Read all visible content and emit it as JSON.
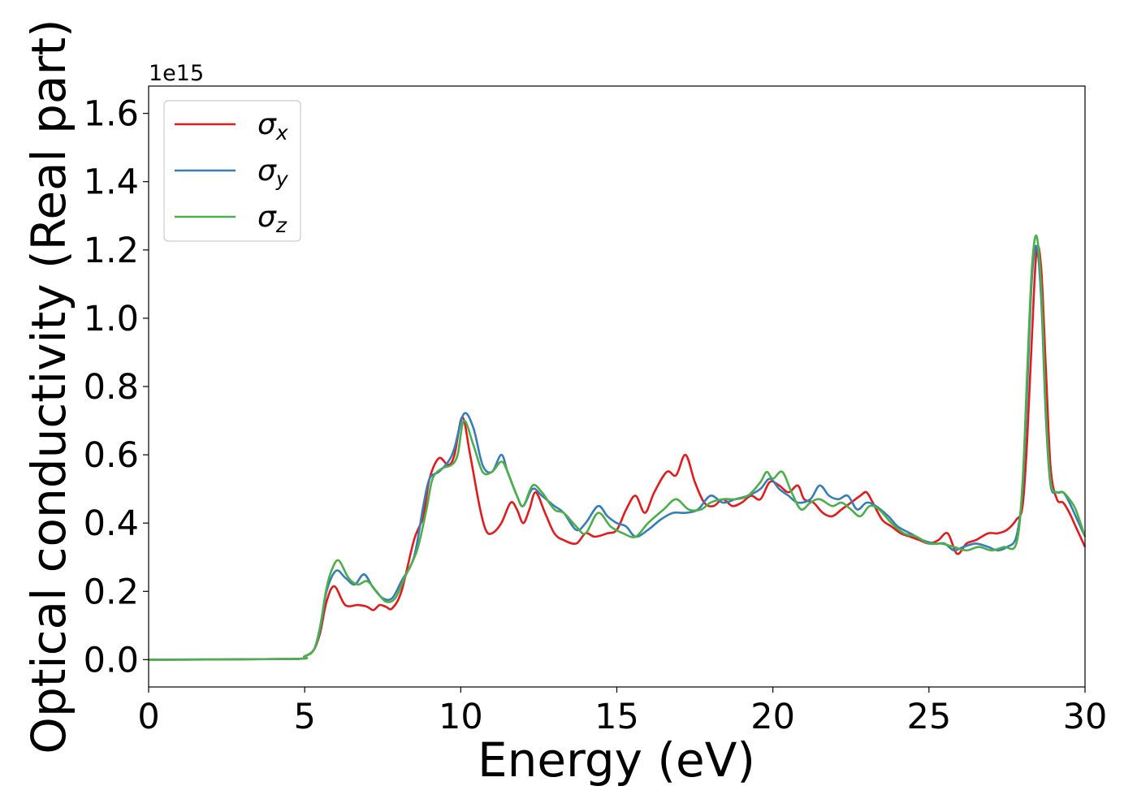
{
  "chart_data": {
    "type": "line",
    "xlabel": "Energy (eV)",
    "ylabel": "Optical conductivity (Real part)",
    "y_offset_label": "1e15",
    "xlim": [
      0,
      30
    ],
    "ylim": [
      -0.08,
      1.68
    ],
    "x_ticks": [
      0,
      5,
      10,
      15,
      20,
      25,
      30
    ],
    "x_tick_labels": [
      "0",
      "5",
      "10",
      "15",
      "20",
      "25",
      "30"
    ],
    "y_ticks": [
      0.0,
      0.2,
      0.4,
      0.6,
      0.8,
      1.0,
      1.2,
      1.4,
      1.6
    ],
    "y_tick_labels": [
      "0.0",
      "0.2",
      "0.4",
      "0.6",
      "0.8",
      "1.0",
      "1.2",
      "1.4",
      "1.6"
    ],
    "grid": false,
    "legend_position": "top-left",
    "series": [
      {
        "name": "σx",
        "symbol": "σ",
        "subscript": "x",
        "color": "#e41a1c",
        "x": [
          0,
          4.6,
          5.0,
          5.3,
          5.5,
          5.7,
          5.95,
          6.3,
          6.7,
          7.0,
          7.2,
          7.4,
          7.6,
          7.8,
          8.1,
          8.5,
          8.8,
          9.0,
          9.3,
          9.6,
          9.8,
          10.05,
          10.3,
          10.6,
          10.8,
          11.0,
          11.3,
          11.6,
          11.8,
          12.0,
          12.2,
          12.4,
          12.7,
          13.0,
          13.3,
          13.7,
          14.0,
          14.3,
          14.7,
          15.0,
          15.3,
          15.6,
          15.9,
          16.2,
          16.6,
          16.9,
          17.2,
          17.5,
          17.8,
          18.1,
          18.4,
          18.7,
          19.0,
          19.3,
          19.6,
          19.9,
          20.2,
          20.5,
          20.8,
          21.0,
          21.3,
          21.6,
          21.9,
          22.2,
          22.5,
          22.8,
          23.0,
          23.2,
          23.5,
          23.8,
          24.1,
          24.4,
          24.7,
          25.0,
          25.3,
          25.6,
          25.9,
          26.2,
          26.5,
          26.9,
          27.2,
          27.5,
          27.8,
          28.0,
          28.15,
          28.3,
          28.45,
          28.6,
          28.75,
          28.9,
          29.1,
          29.3,
          29.5,
          29.7,
          30.0
        ],
        "y": [
          0.0,
          0.002,
          0.01,
          0.03,
          0.08,
          0.17,
          0.215,
          0.16,
          0.16,
          0.155,
          0.145,
          0.16,
          0.155,
          0.15,
          0.2,
          0.35,
          0.42,
          0.53,
          0.59,
          0.57,
          0.6,
          0.71,
          0.6,
          0.45,
          0.38,
          0.37,
          0.4,
          0.46,
          0.44,
          0.4,
          0.44,
          0.49,
          0.43,
          0.37,
          0.35,
          0.34,
          0.37,
          0.36,
          0.37,
          0.38,
          0.44,
          0.48,
          0.43,
          0.49,
          0.55,
          0.54,
          0.6,
          0.52,
          0.46,
          0.45,
          0.47,
          0.45,
          0.46,
          0.48,
          0.47,
          0.52,
          0.51,
          0.49,
          0.51,
          0.47,
          0.46,
          0.43,
          0.42,
          0.44,
          0.46,
          0.48,
          0.49,
          0.46,
          0.41,
          0.39,
          0.37,
          0.36,
          0.35,
          0.34,
          0.35,
          0.37,
          0.31,
          0.34,
          0.35,
          0.37,
          0.37,
          0.38,
          0.41,
          0.45,
          0.65,
          0.95,
          1.2,
          1.14,
          0.84,
          0.56,
          0.47,
          0.46,
          0.43,
          0.39,
          0.33
        ]
      },
      {
        "name": "σy",
        "symbol": "σ",
        "subscript": "y",
        "color": "#377eb8",
        "x": [
          0,
          4.6,
          5.0,
          5.3,
          5.5,
          5.7,
          6.0,
          6.3,
          6.6,
          6.9,
          7.2,
          7.5,
          7.8,
          8.1,
          8.5,
          8.8,
          9.0,
          9.3,
          9.6,
          9.8,
          10.1,
          10.4,
          10.7,
          11.0,
          11.3,
          11.5,
          11.8,
          12.0,
          12.3,
          12.6,
          13.0,
          13.3,
          13.7,
          14.0,
          14.4,
          14.7,
          15.0,
          15.3,
          15.6,
          16.0,
          16.4,
          16.8,
          17.2,
          17.6,
          18.0,
          18.4,
          18.8,
          19.2,
          19.6,
          19.9,
          20.2,
          20.5,
          20.8,
          21.2,
          21.5,
          21.8,
          22.1,
          22.4,
          22.7,
          23.0,
          23.3,
          23.7,
          24.0,
          24.4,
          24.8,
          25.2,
          25.5,
          25.8,
          26.1,
          26.5,
          26.9,
          27.2,
          27.5,
          27.8,
          28.0,
          28.15,
          28.3,
          28.45,
          28.6,
          28.75,
          28.9,
          29.1,
          29.3,
          29.5,
          29.7,
          30.0
        ],
        "y": [
          0.0,
          0.002,
          0.01,
          0.03,
          0.09,
          0.2,
          0.26,
          0.24,
          0.22,
          0.25,
          0.21,
          0.18,
          0.18,
          0.23,
          0.3,
          0.45,
          0.53,
          0.55,
          0.58,
          0.62,
          0.72,
          0.68,
          0.57,
          0.55,
          0.6,
          0.55,
          0.48,
          0.45,
          0.5,
          0.48,
          0.45,
          0.43,
          0.38,
          0.4,
          0.45,
          0.42,
          0.4,
          0.39,
          0.36,
          0.38,
          0.41,
          0.43,
          0.43,
          0.44,
          0.48,
          0.46,
          0.47,
          0.48,
          0.5,
          0.53,
          0.5,
          0.48,
          0.46,
          0.47,
          0.51,
          0.48,
          0.47,
          0.48,
          0.44,
          0.46,
          0.45,
          0.42,
          0.39,
          0.37,
          0.35,
          0.34,
          0.34,
          0.32,
          0.33,
          0.34,
          0.33,
          0.32,
          0.33,
          0.36,
          0.5,
          0.8,
          1.12,
          1.21,
          1.05,
          0.7,
          0.51,
          0.49,
          0.49,
          0.46,
          0.42,
          0.36
        ]
      },
      {
        "name": "σz",
        "symbol": "σ",
        "subscript": "z",
        "color": "#4daf4a",
        "x": [
          0,
          4.6,
          5.0,
          5.3,
          5.5,
          5.7,
          5.9,
          6.1,
          6.4,
          6.7,
          7.0,
          7.3,
          7.6,
          7.9,
          8.2,
          8.6,
          8.9,
          9.1,
          9.4,
          9.7,
          9.9,
          10.1,
          10.4,
          10.7,
          11.0,
          11.3,
          11.5,
          11.8,
          12.0,
          12.3,
          12.6,
          13.0,
          13.3,
          13.7,
          14.0,
          14.4,
          14.8,
          15.2,
          15.6,
          16.0,
          16.5,
          16.9,
          17.3,
          17.7,
          18.0,
          18.4,
          18.8,
          19.2,
          19.6,
          19.8,
          20.0,
          20.3,
          20.6,
          20.9,
          21.2,
          21.5,
          21.9,
          22.2,
          22.5,
          22.8,
          23.1,
          23.4,
          23.8,
          24.2,
          24.6,
          25.0,
          25.4,
          25.8,
          26.2,
          26.6,
          27.0,
          27.4,
          27.8,
          28.0,
          28.15,
          28.3,
          28.45,
          28.6,
          28.75,
          28.9,
          29.1,
          29.3,
          29.5,
          29.7,
          30.0
        ],
        "y": [
          0.0,
          0.002,
          0.01,
          0.03,
          0.1,
          0.21,
          0.27,
          0.29,
          0.24,
          0.22,
          0.23,
          0.2,
          0.17,
          0.18,
          0.24,
          0.32,
          0.44,
          0.53,
          0.56,
          0.57,
          0.6,
          0.7,
          0.63,
          0.55,
          0.55,
          0.58,
          0.55,
          0.48,
          0.45,
          0.51,
          0.49,
          0.44,
          0.43,
          0.39,
          0.37,
          0.43,
          0.39,
          0.37,
          0.36,
          0.4,
          0.44,
          0.47,
          0.44,
          0.44,
          0.46,
          0.47,
          0.47,
          0.48,
          0.52,
          0.55,
          0.53,
          0.55,
          0.49,
          0.44,
          0.46,
          0.47,
          0.45,
          0.46,
          0.44,
          0.42,
          0.45,
          0.44,
          0.4,
          0.37,
          0.36,
          0.34,
          0.34,
          0.33,
          0.32,
          0.33,
          0.32,
          0.33,
          0.34,
          0.52,
          0.85,
          1.15,
          1.24,
          1.08,
          0.72,
          0.52,
          0.49,
          0.49,
          0.47,
          0.44,
          0.36
        ]
      }
    ]
  }
}
